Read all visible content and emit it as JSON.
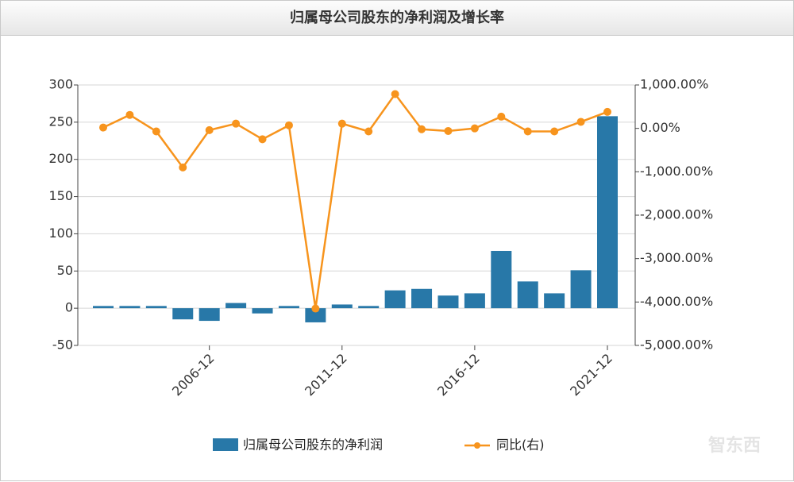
{
  "watermark": "智东西",
  "chart_data": {
    "type": "bar-line",
    "title": "归属母公司股东的净利润及增长率",
    "categories": [
      null,
      null,
      null,
      null,
      "2006-12",
      null,
      null,
      null,
      null,
      "2011-12",
      null,
      null,
      null,
      null,
      "2016-12",
      null,
      null,
      null,
      null,
      "2021-12"
    ],
    "series": [
      {
        "name": "归属母公司股东的净利润",
        "type": "bar",
        "color": "#2878a8",
        "values": [
          3,
          3,
          3,
          -15,
          -17,
          7,
          -7,
          3,
          -19,
          5,
          3,
          24,
          26,
          17,
          20,
          77,
          36,
          20,
          51,
          258
        ]
      },
      {
        "name": "同比(右)",
        "type": "line",
        "axis": "y2",
        "color": "#f7941d",
        "values": [
          20,
          310,
          -70,
          -900,
          -40,
          110,
          -250,
          70,
          -4150,
          110,
          -70,
          790,
          -20,
          -60,
          0,
          270,
          -70,
          -70,
          150,
          380
        ]
      }
    ],
    "ylim": [
      -50,
      300
    ],
    "yticks": [
      -50,
      0,
      50,
      100,
      150,
      200,
      250,
      300
    ],
    "y2lim": [
      -5000,
      1000
    ],
    "y2ticks": [
      {
        "value": 1000,
        "label": "1,000.00%"
      },
      {
        "value": 0,
        "label": "0.00%"
      },
      {
        "value": -1000,
        "label": "-1,000.00%"
      },
      {
        "value": -2000,
        "label": "-2,000.00%"
      },
      {
        "value": -3000,
        "label": "-3,000.00%"
      },
      {
        "value": -4000,
        "label": "-4,000.00%"
      },
      {
        "value": -5000,
        "label": "-5,000.00%"
      }
    ],
    "grid": true
  }
}
